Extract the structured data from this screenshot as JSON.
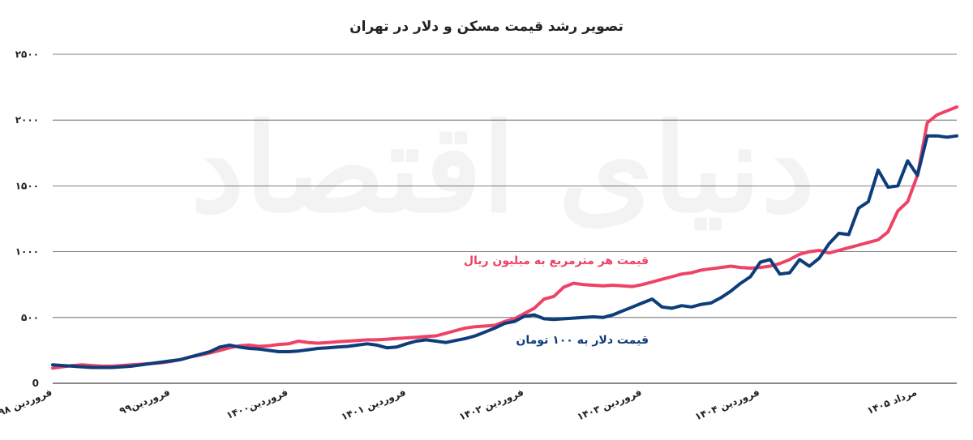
{
  "chart_data": {
    "type": "line",
    "title": "تصویر رشد قیمت مسکن  و دلار در تهران",
    "watermark": "دنیای اقتصاد",
    "ylim": [
      0,
      2500
    ],
    "yticks": [
      0,
      500,
      1000,
      1500,
      2000,
      2500
    ],
    "ytick_labels": [
      "0",
      "۵۰۰",
      "۱۰۰۰",
      "۱۵۰۰",
      "۲۰۰۰",
      "۲۵۰۰"
    ],
    "grid": true,
    "xticks": [
      {
        "index": 0,
        "label": "فروردین ۹۸"
      },
      {
        "index": 12,
        "label": "فروردین۹۹"
      },
      {
        "index": 24,
        "label": "فروردین۱۴۰۰"
      },
      {
        "index": 36,
        "label": "فروردین ۱۴۰۱"
      },
      {
        "index": 48,
        "label": "فروردین ۱۴۰۲"
      },
      {
        "index": 60,
        "label": "فروردین ۱۴۰۳"
      },
      {
        "index": 72,
        "label": "فروردین ۱۴۰۴"
      },
      {
        "index": 88,
        "label": "مرداد ۱۴۰۵"
      }
    ],
    "series": [
      {
        "name": "قیمت هر مترمربع به میلیون ریال",
        "color": "#ee4266",
        "values": [
          115,
          125,
          135,
          140,
          135,
          130,
          130,
          135,
          140,
          145,
          150,
          155,
          165,
          180,
          200,
          215,
          230,
          250,
          270,
          285,
          290,
          280,
          285,
          295,
          300,
          320,
          310,
          305,
          310,
          315,
          320,
          325,
          330,
          330,
          335,
          340,
          345,
          350,
          355,
          360,
          380,
          400,
          420,
          430,
          435,
          440,
          470,
          490,
          530,
          570,
          640,
          660,
          730,
          760,
          750,
          745,
          740,
          745,
          740,
          735,
          750,
          770,
          790,
          810,
          830,
          840,
          860,
          870,
          880,
          890,
          880,
          875,
          880,
          890,
          910,
          940,
          980,
          1000,
          1010,
          990,
          1010,
          1030,
          1050,
          1070,
          1090,
          1150,
          1310,
          1380,
          1580,
          1980,
          2040,
          2070,
          2100
        ]
      },
      {
        "name": "قیمت دلار به ۱۰۰ تومان",
        "color": "#0d3d7a",
        "values": [
          140,
          135,
          130,
          125,
          120,
          120,
          120,
          125,
          130,
          140,
          150,
          160,
          170,
          180,
          200,
          220,
          240,
          275,
          290,
          275,
          265,
          260,
          250,
          240,
          240,
          245,
          255,
          265,
          270,
          275,
          280,
          290,
          300,
          290,
          270,
          275,
          300,
          320,
          330,
          320,
          310,
          325,
          340,
          360,
          390,
          420,
          455,
          470,
          510,
          520,
          490,
          485,
          490,
          495,
          500,
          505,
          500,
          520,
          550,
          580,
          610,
          640,
          580,
          570,
          590,
          580,
          600,
          610,
          650,
          700,
          760,
          810,
          920,
          940,
          830,
          840,
          940,
          890,
          950,
          1060,
          1140,
          1130,
          1330,
          1380,
          1620,
          1490,
          1500,
          1690,
          1580,
          1880,
          1880,
          1870,
          1880
        ]
      }
    ],
    "annotations": [
      {
        "text": "قیمت هر مترمربع به میلیون ریال",
        "series": 0
      },
      {
        "text": "قیمت دلار به ۱۰۰ تومان",
        "series": 1
      }
    ]
  }
}
